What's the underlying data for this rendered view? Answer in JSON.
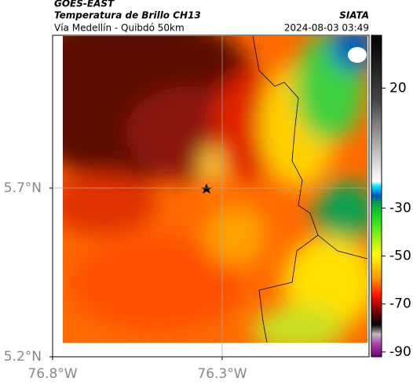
{
  "header": {
    "source": "GOES-EAST",
    "title": "Temperatura de Brillo CH13",
    "subtitle": "Vía Medellín - Quibdó 50km",
    "brand": "SIATA",
    "datetime": "2024-08-03 03:49"
  },
  "chart_data": {
    "type": "map",
    "xlim": [
      -76.8,
      -75.867
    ],
    "ylim": [
      5.2,
      6.153
    ],
    "xticks": [
      {
        "value": -76.8,
        "label": "76.8°W"
      },
      {
        "value": -76.3,
        "label": "76.3°W"
      }
    ],
    "yticks": [
      {
        "value": 5.2,
        "label": "5.2°N"
      },
      {
        "value": 5.7,
        "label": "5.7°N"
      }
    ],
    "grid": true,
    "clim": [
      -92,
      42
    ],
    "cticks": [
      20,
      -30,
      -50,
      -70,
      -90
    ]
  }
}
